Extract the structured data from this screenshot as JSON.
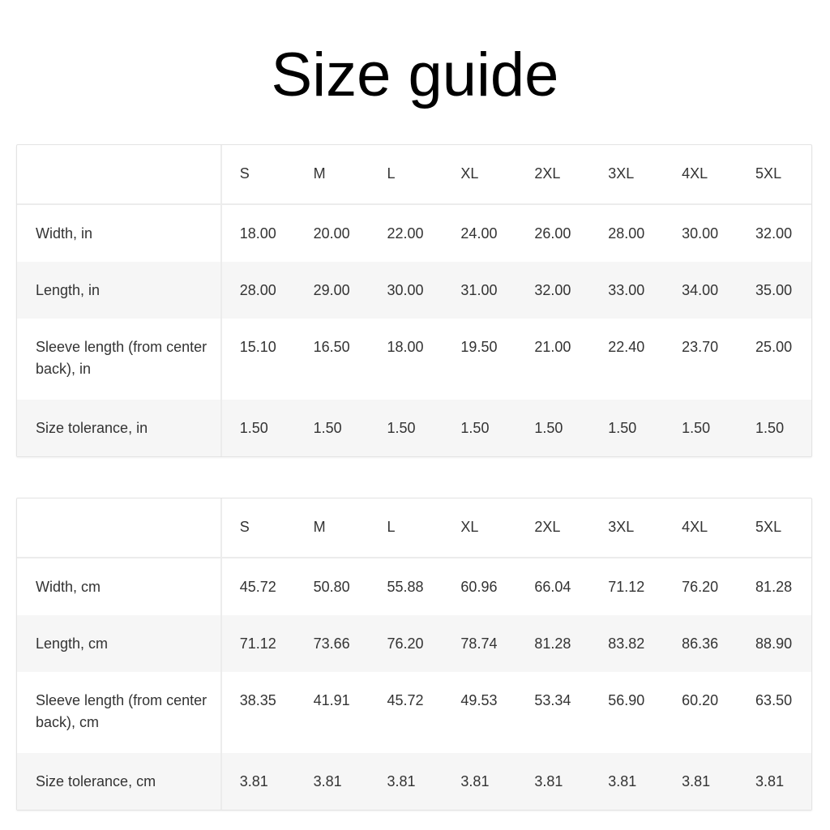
{
  "title": "Size guide",
  "tables": [
    {
      "sizes": [
        "S",
        "M",
        "L",
        "XL",
        "2XL",
        "3XL",
        "4XL",
        "5XL"
      ],
      "rows": [
        {
          "label": "Width, in",
          "values": [
            "18.00",
            "20.00",
            "22.00",
            "24.00",
            "26.00",
            "28.00",
            "30.00",
            "32.00"
          ]
        },
        {
          "label": "Length, in",
          "values": [
            "28.00",
            "29.00",
            "30.00",
            "31.00",
            "32.00",
            "33.00",
            "34.00",
            "35.00"
          ]
        },
        {
          "label": "Sleeve length (from center back), in",
          "values": [
            "15.10",
            "16.50",
            "18.00",
            "19.50",
            "21.00",
            "22.40",
            "23.70",
            "25.00"
          ]
        },
        {
          "label": "Size tolerance, in",
          "values": [
            "1.50",
            "1.50",
            "1.50",
            "1.50",
            "1.50",
            "1.50",
            "1.50",
            "1.50"
          ]
        }
      ]
    },
    {
      "sizes": [
        "S",
        "M",
        "L",
        "XL",
        "2XL",
        "3XL",
        "4XL",
        "5XL"
      ],
      "rows": [
        {
          "label": "Width, cm",
          "values": [
            "45.72",
            "50.80",
            "55.88",
            "60.96",
            "66.04",
            "71.12",
            "76.20",
            "81.28"
          ]
        },
        {
          "label": "Length, cm",
          "values": [
            "71.12",
            "73.66",
            "76.20",
            "78.74",
            "81.28",
            "83.82",
            "86.36",
            "88.90"
          ]
        },
        {
          "label": "Sleeve length (from center back), cm",
          "values": [
            "38.35",
            "41.91",
            "45.72",
            "49.53",
            "53.34",
            "56.90",
            "60.20",
            "63.50"
          ]
        },
        {
          "label": "Size tolerance, cm",
          "values": [
            "3.81",
            "3.81",
            "3.81",
            "3.81",
            "3.81",
            "3.81",
            "3.81",
            "3.81"
          ]
        }
      ]
    }
  ]
}
